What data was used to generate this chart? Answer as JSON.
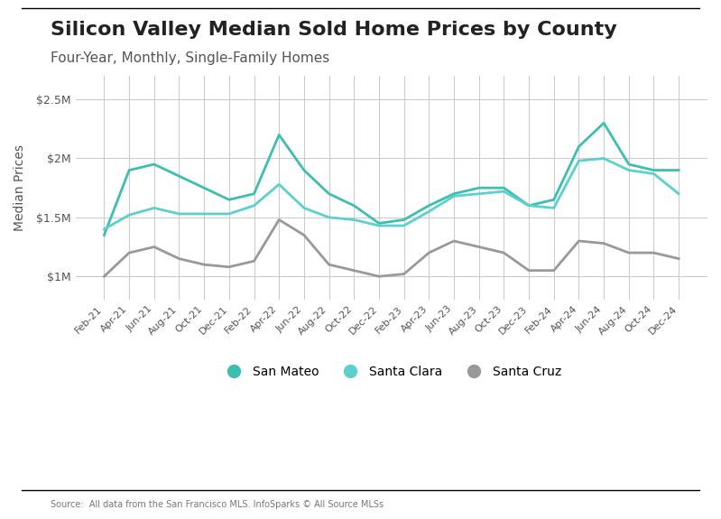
{
  "title": "Silicon Valley Median Sold Home Prices by County",
  "subtitle": "Four-Year, Monthly, Single-Family Homes",
  "source": "Source:  All data from the San Francisco MLS. InfoSparks © All Source MLSs",
  "ylabel": "Median Prices",
  "x_labels": [
    "Feb-21",
    "Apr-21",
    "Jun-21",
    "Aug-21",
    "Oct-21",
    "Dec-21",
    "Feb-22",
    "Apr-22",
    "Jun-22",
    "Aug-22",
    "Oct-22",
    "Dec-22",
    "Feb-23",
    "Apr-23",
    "Jun-23",
    "Aug-23",
    "Oct-23",
    "Dec-23",
    "Feb-24",
    "Apr-24",
    "Jun-24",
    "Aug-24",
    "Oct-24",
    "Dec-24"
  ],
  "ylim": [
    800000,
    2700000
  ],
  "yticks": [
    1000000,
    1500000,
    2000000,
    2500000
  ],
  "ytick_labels": [
    "$1M",
    "$1.5M",
    "$2M",
    "$2.5M"
  ],
  "san_mateo_color": "#3dbfb0",
  "santa_clara_color": "#5ccfcf",
  "santa_cruz_color": "#999999",
  "san_mateo": [
    1350000,
    1900000,
    1950000,
    1850000,
    1750000,
    1650000,
    1700000,
    2200000,
    1900000,
    1700000,
    1600000,
    1450000,
    1480000,
    1600000,
    1700000,
    1750000,
    1750000,
    1600000,
    1650000,
    2100000,
    2300000,
    1950000,
    1900000,
    1900000
  ],
  "santa_clara": [
    1400000,
    1520000,
    1580000,
    1530000,
    1530000,
    1530000,
    1600000,
    1780000,
    1580000,
    1500000,
    1480000,
    1430000,
    1430000,
    1550000,
    1680000,
    1700000,
    1720000,
    1600000,
    1580000,
    1980000,
    2000000,
    1900000,
    1870000,
    1700000
  ],
  "santa_cruz": [
    1000000,
    1200000,
    1250000,
    1150000,
    1100000,
    1080000,
    1130000,
    1480000,
    1350000,
    1100000,
    1050000,
    1000000,
    1020000,
    1200000,
    1300000,
    1250000,
    1200000,
    1050000,
    1050000,
    1300000,
    1280000,
    1200000,
    1200000,
    1150000
  ],
  "background_color": "#ffffff",
  "grid_color": "#cccccc",
  "legend_labels": [
    "San Mateo",
    "Santa Clara",
    "Santa Cruz"
  ],
  "title_fontsize": 16,
  "subtitle_fontsize": 11,
  "tick_fontsize": 9,
  "ylabel_fontsize": 10
}
